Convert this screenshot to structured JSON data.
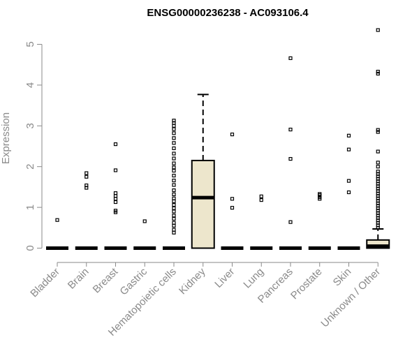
{
  "chart_data": {
    "type": "box",
    "title": "ENSG00000236238 - AC093106.4",
    "ylabel": "Expression",
    "xlabel": "",
    "ylim": [
      0,
      5.45
    ],
    "yticks": [
      0,
      1,
      2,
      3,
      4,
      5
    ],
    "grid": false,
    "colors": {
      "box_fill": "#ede6cc",
      "stroke": "#000000",
      "axis": "#8a8a8a"
    },
    "categories": [
      "Bladder",
      "Brain",
      "Breast",
      "Gastric",
      "Hematopoietic cells",
      "Kidney",
      "Liver",
      "Lung",
      "Pancreas",
      "Prostate",
      "Skin",
      "Unknown / Other"
    ],
    "boxes": [
      {
        "q1": 0,
        "median": 0,
        "q3": 0,
        "whisker_low": 0,
        "whisker_high": 0,
        "outliers": [
          0.69
        ]
      },
      {
        "q1": 0,
        "median": 0,
        "q3": 0,
        "whisker_low": 0,
        "whisker_high": 0,
        "outliers": [
          1.48,
          1.54,
          1.75,
          1.84
        ]
      },
      {
        "q1": 0,
        "median": 0,
        "q3": 0,
        "whisker_low": 0,
        "whisker_high": 0,
        "outliers": [
          0.88,
          0.92,
          1.13,
          1.21,
          1.28,
          1.35,
          1.91,
          2.55
        ]
      },
      {
        "q1": 0,
        "median": 0,
        "q3": 0,
        "whisker_low": 0,
        "whisker_high": 0,
        "outliers": [
          0.66
        ]
      },
      {
        "q1": 0,
        "median": 0,
        "q3": 0,
        "whisker_low": 0,
        "whisker_high": 0,
        "outliers": [
          0.38,
          0.45,
          0.55,
          0.62,
          0.72,
          0.8,
          0.9,
          0.98,
          1.06,
          1.15,
          1.22,
          1.32,
          1.42,
          1.55,
          1.66,
          1.78,
          1.9,
          1.98,
          2.08,
          2.2,
          2.32,
          2.45,
          2.58,
          2.7,
          2.82,
          2.92,
          3.0,
          3.07,
          3.13
        ]
      },
      {
        "q1": 0,
        "median": 1.24,
        "q3": 2.15,
        "whisker_low": 0,
        "whisker_high": 3.77,
        "outliers": []
      },
      {
        "q1": 0,
        "median": 0,
        "q3": 0,
        "whisker_low": 0,
        "whisker_high": 0,
        "outliers": [
          0.99,
          1.21,
          2.79
        ]
      },
      {
        "q1": 0,
        "median": 0,
        "q3": 0,
        "whisker_low": 0,
        "whisker_high": 0,
        "outliers": [
          1.18,
          1.27
        ]
      },
      {
        "q1": 0,
        "median": 0,
        "q3": 0,
        "whisker_low": 0,
        "whisker_high": 0,
        "outliers": [
          0.64,
          2.19,
          2.91,
          4.66
        ]
      },
      {
        "q1": 0,
        "median": 0,
        "q3": 0,
        "whisker_low": 0,
        "whisker_high": 0,
        "outliers": [
          1.21,
          1.25,
          1.3,
          1.33
        ]
      },
      {
        "q1": 0,
        "median": 0,
        "q3": 0,
        "whisker_low": 0,
        "whisker_high": 0,
        "outliers": [
          1.37,
          1.65,
          2.42,
          2.76
        ]
      },
      {
        "q1": 0,
        "median": 0.05,
        "q3": 0.2,
        "whisker_low": 0,
        "whisker_high": 0.47,
        "outliers": [
          0.5,
          0.56,
          0.62,
          0.68,
          0.74,
          0.8,
          0.86,
          0.92,
          0.98,
          1.04,
          1.1,
          1.16,
          1.22,
          1.28,
          1.34,
          1.4,
          1.46,
          1.52,
          1.58,
          1.64,
          1.7,
          1.76,
          1.82,
          1.88,
          2.0,
          2.1,
          2.37,
          2.85,
          2.9,
          4.28,
          4.33,
          5.35
        ]
      }
    ]
  }
}
